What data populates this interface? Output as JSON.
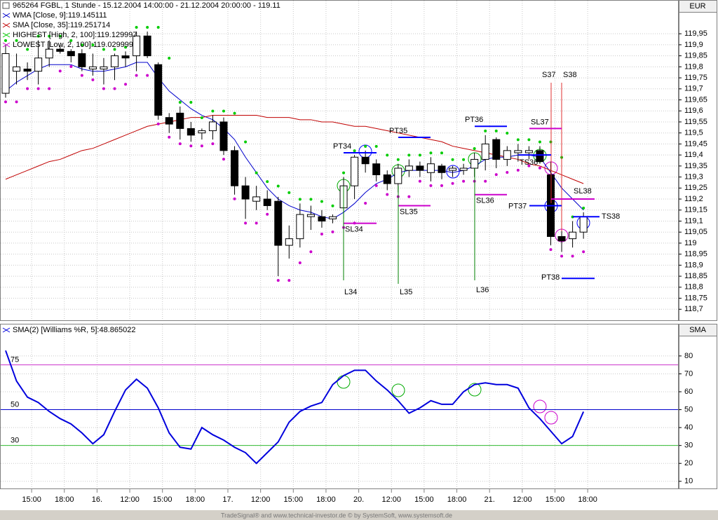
{
  "chart_data": [
    {
      "type": "candlestick",
      "title": "965264  FGBL, 1 Stunde - 15.12.2004 14:00:00 - 21.12.2004 20:00:00 - 119.11",
      "unit": "EUR",
      "open": [
        119.68,
        119.78,
        119.79,
        119.78,
        119.84,
        119.88,
        119.87,
        119.86,
        119.79,
        119.79,
        119.8,
        119.85,
        119.85,
        119.94,
        119.81,
        119.57,
        119.59,
        119.52,
        119.5,
        119.51,
        119.55,
        119.42,
        119.26,
        119.19,
        119.2,
        119.19,
        118.99,
        119.02,
        119.12,
        119.12,
        119.11,
        119.16,
        119.26,
        119.39,
        119.36,
        119.31,
        119.27,
        119.33,
        119.35,
        119.32,
        119.35,
        119.33,
        119.33,
        119.34,
        119.38,
        119.47,
        119.38,
        119.41,
        119.41,
        119.42,
        119.31,
        119.03,
        119.02,
        119.05
      ],
      "high": [
        119.9,
        119.86,
        119.82,
        119.92,
        119.92,
        119.9,
        119.88,
        119.88,
        119.86,
        119.84,
        119.86,
        119.87,
        119.96,
        119.96,
        119.82,
        119.59,
        119.62,
        119.55,
        119.52,
        119.58,
        119.57,
        119.44,
        119.3,
        119.26,
        119.24,
        119.21,
        119.08,
        119.18,
        119.17,
        119.15,
        119.13,
        119.3,
        119.4,
        119.42,
        119.38,
        119.33,
        119.36,
        119.38,
        119.37,
        119.39,
        119.36,
        119.35,
        119.36,
        119.41,
        119.49,
        119.48,
        119.44,
        119.45,
        119.44,
        119.44,
        119.37,
        119.06,
        119.1,
        119.14
      ],
      "low": [
        119.66,
        119.72,
        119.74,
        119.72,
        119.8,
        119.86,
        119.82,
        119.78,
        119.76,
        119.72,
        119.74,
        119.8,
        119.78,
        119.84,
        119.56,
        119.5,
        119.47,
        119.46,
        119.47,
        119.47,
        119.4,
        119.22,
        119.11,
        119.15,
        119.15,
        118.85,
        118.93,
        118.98,
        119.06,
        119.07,
        119.09,
        119.11,
        119.2,
        119.32,
        119.28,
        119.24,
        119.23,
        119.3,
        119.3,
        119.28,
        119.29,
        119.3,
        119.31,
        119.3,
        119.33,
        119.34,
        119.35,
        119.37,
        119.38,
        119.36,
        118.99,
        118.96,
        118.98,
        119.02
      ],
      "close": [
        119.86,
        119.8,
        119.78,
        119.84,
        119.88,
        119.87,
        119.85,
        119.8,
        119.8,
        119.8,
        119.85,
        119.84,
        119.94,
        119.85,
        119.58,
        119.54,
        119.52,
        119.49,
        119.51,
        119.55,
        119.42,
        119.26,
        119.2,
        119.21,
        119.17,
        118.99,
        119.02,
        119.13,
        119.13,
        119.1,
        119.12,
        119.26,
        119.39,
        119.36,
        119.31,
        119.27,
        119.34,
        119.35,
        119.33,
        119.36,
        119.32,
        119.34,
        119.34,
        119.38,
        119.45,
        119.38,
        119.42,
        119.42,
        119.42,
        119.37,
        119.03,
        119.01,
        119.05,
        119.12
      ],
      "series": [
        {
          "name": "WMA [Close, 9]:119.145111",
          "color": "#0000cc",
          "style": "line",
          "values": [
            119.69,
            119.73,
            119.76,
            119.79,
            119.81,
            119.81,
            119.81,
            119.79,
            119.78,
            119.78,
            119.79,
            119.8,
            119.82,
            119.82,
            119.75,
            119.69,
            119.65,
            119.61,
            119.58,
            119.56,
            119.52,
            119.47,
            119.39,
            119.32,
            119.25,
            119.2,
            119.17,
            119.15,
            119.14,
            119.12,
            119.11,
            119.14,
            119.18,
            119.23,
            119.27,
            119.29,
            119.32,
            119.33,
            119.33,
            119.33,
            119.33,
            119.32,
            119.33,
            119.35,
            119.38,
            119.39,
            119.39,
            119.4,
            119.4,
            119.39,
            119.32,
            119.25,
            119.2,
            119.15
          ]
        },
        {
          "name": "SMA [Close, 35]:119.251714",
          "color": "#c00000",
          "style": "line",
          "values": [
            119.29,
            119.31,
            119.33,
            119.35,
            119.37,
            119.38,
            119.4,
            119.42,
            119.43,
            119.45,
            119.47,
            119.49,
            119.51,
            119.53,
            119.54,
            119.55,
            119.56,
            119.57,
            119.57,
            119.58,
            119.58,
            119.58,
            119.58,
            119.58,
            119.57,
            119.57,
            119.57,
            119.56,
            119.56,
            119.55,
            119.55,
            119.54,
            119.53,
            119.53,
            119.52,
            119.51,
            119.5,
            119.49,
            119.48,
            119.47,
            119.46,
            119.44,
            119.43,
            119.42,
            119.41,
            119.4,
            119.39,
            119.38,
            119.36,
            119.35,
            119.33,
            119.31,
            119.29,
            119.27
          ]
        },
        {
          "name": "HIGHEST [High, 2, 100]:119.129997",
          "color": "#00cc00",
          "style": "dots",
          "values": [
            119.9,
            119.9,
            119.86,
            119.92,
            119.92,
            119.92,
            119.9,
            119.88,
            119.88,
            119.86,
            119.86,
            119.87,
            119.96,
            119.96,
            119.96,
            119.82,
            119.62,
            119.62,
            119.55,
            119.58,
            119.58,
            119.57,
            119.44,
            119.3,
            119.26,
            119.24,
            119.21,
            119.18,
            119.18,
            119.17,
            119.15,
            119.3,
            119.4,
            119.42,
            119.42,
            119.38,
            119.36,
            119.38,
            119.38,
            119.39,
            119.39,
            119.36,
            119.36,
            119.41,
            119.49,
            119.49,
            119.48,
            119.45,
            119.45,
            119.44,
            119.44,
            119.37,
            119.1,
            119.14
          ]
        },
        {
          "name": "LOWEST [Low, 2, 100]:119.029999",
          "color": "#cc00cc",
          "style": "dots",
          "values": [
            119.66,
            119.66,
            119.72,
            119.72,
            119.72,
            119.8,
            119.82,
            119.78,
            119.76,
            119.72,
            119.72,
            119.74,
            119.78,
            119.78,
            119.56,
            119.5,
            119.47,
            119.46,
            119.46,
            119.47,
            119.4,
            119.22,
            119.11,
            119.11,
            119.15,
            118.85,
            118.85,
            118.93,
            118.98,
            119.06,
            119.07,
            119.09,
            119.11,
            119.2,
            119.28,
            119.24,
            119.23,
            119.23,
            119.3,
            119.28,
            119.28,
            119.29,
            119.3,
            119.3,
            119.3,
            119.33,
            119.34,
            119.35,
            119.37,
            119.36,
            118.99,
            118.96,
            118.96,
            118.98
          ]
        }
      ],
      "annotations": [
        {
          "label": "PT34",
          "price": 119.41,
          "color": "#0000ff"
        },
        {
          "label": "SL34",
          "price": 119.09,
          "color": "#cc00cc"
        },
        {
          "label": "L34",
          "color": "#008000"
        },
        {
          "label": "PT35",
          "price": 119.48,
          "color": "#0000ff"
        },
        {
          "label": "SL35",
          "price": 119.17,
          "color": "#cc00cc"
        },
        {
          "label": "L35",
          "color": "#008000"
        },
        {
          "label": "PT36",
          "price": 119.53,
          "color": "#0000ff"
        },
        {
          "label": "SL36",
          "price": 119.22,
          "color": "#cc00cc"
        },
        {
          "label": "L36",
          "color": "#008000"
        },
        {
          "label": "S37",
          "color": "#e03030"
        },
        {
          "label": "S38",
          "color": "#e03030"
        },
        {
          "label": "SL37",
          "price": 119.52,
          "color": "#cc00cc"
        },
        {
          "label": "TS36",
          "price": 119.4,
          "color": "#0000ff"
        },
        {
          "label": "PT37",
          "price": 119.17,
          "color": "#0000ff"
        },
        {
          "label": "SL38",
          "price": 119.2,
          "color": "#cc00cc"
        },
        {
          "label": "TS38",
          "price": 119.12,
          "color": "#0000ff"
        },
        {
          "label": "PT38",
          "price": 118.84,
          "color": "#0000ff"
        }
      ],
      "ylim": [
        118.65,
        120.1
      ],
      "yticks": [
        {
          "value": 118.7,
          "label": "118,7"
        },
        {
          "value": 118.75,
          "label": "118,75"
        },
        {
          "value": 118.8,
          "label": "118,8"
        },
        {
          "value": 118.85,
          "label": "118,85"
        },
        {
          "value": 118.9,
          "label": "118,9"
        },
        {
          "value": 118.95,
          "label": "118,95"
        },
        119,
        {
          "value": 119.05,
          "label": "119,05"
        },
        {
          "value": 119.1,
          "label": "119,1"
        },
        {
          "value": 119.15,
          "label": "119,15"
        },
        {
          "value": 119.2,
          "label": "119,2"
        },
        {
          "value": 119.25,
          "label": "119,25"
        },
        {
          "value": 119.3,
          "label": "119,3"
        },
        {
          "value": 119.35,
          "label": "119,35"
        },
        {
          "value": 119.4,
          "label": "119,4"
        },
        {
          "value": 119.45,
          "label": "119,45"
        },
        {
          "value": 119.5,
          "label": "119,5"
        },
        {
          "value": 119.55,
          "label": "119,55"
        },
        {
          "value": 119.6,
          "label": "119,6"
        },
        {
          "value": 119.65,
          "label": "119,65"
        },
        {
          "value": 119.7,
          "label": "119,7"
        },
        {
          "value": 119.75,
          "label": "119,75"
        },
        {
          "value": 119.8,
          "label": "119,8"
        },
        {
          "value": 119.85,
          "label": "119,85"
        },
        {
          "value": 119.9,
          "label": "119,9"
        },
        {
          "value": 119.95,
          "label": "119,95"
        }
      ],
      "grid": true
    },
    {
      "type": "line",
      "unit": "SMA",
      "categories": [
        null,
        null,
        "15:00",
        null,
        null,
        "18:00",
        null,
        null,
        "16.",
        null,
        null,
        "12:00",
        null,
        null,
        "15:00",
        null,
        null,
        "18:00",
        null,
        null,
        "17.",
        null,
        null,
        "12:00",
        null,
        null,
        "15:00",
        null,
        null,
        "18:00",
        null,
        null,
        "20.",
        null,
        null,
        "12:00",
        null,
        null,
        "15:00",
        null,
        null,
        "18:00",
        null,
        null,
        "21.",
        null,
        null,
        "12:00",
        null,
        null,
        "15:00",
        null,
        null,
        "18:00"
      ],
      "series": [
        {
          "name": "SMA(2) [Williams %R, 5]:48.865022",
          "color": "#0000dd",
          "values": [
            83,
            66,
            57,
            54,
            49,
            45,
            42,
            37,
            31,
            36,
            49,
            61,
            67,
            62,
            51,
            37,
            29,
            28,
            40,
            36,
            33,
            29,
            26,
            20,
            26,
            32,
            43,
            49,
            52,
            54,
            64,
            69,
            72,
            72,
            66,
            61,
            55,
            48,
            51,
            55,
            53,
            53,
            60,
            64,
            65,
            64,
            64,
            62,
            51,
            45,
            38,
            31,
            35,
            48.87
          ]
        }
      ],
      "levels": [
        {
          "value": 75,
          "color": "#cc33cc"
        },
        {
          "value": 50,
          "color": "#0000cc"
        },
        {
          "value": 30,
          "color": "#33bb33"
        }
      ],
      "ylim": [
        6,
        96
      ],
      "yticks": [
        10,
        20,
        30,
        40,
        50,
        60,
        70,
        80
      ],
      "grid": true
    }
  ],
  "footer": "TradeSignal® and www.technical-investor.de © by  SystemSoft, www.systemsoft.de"
}
